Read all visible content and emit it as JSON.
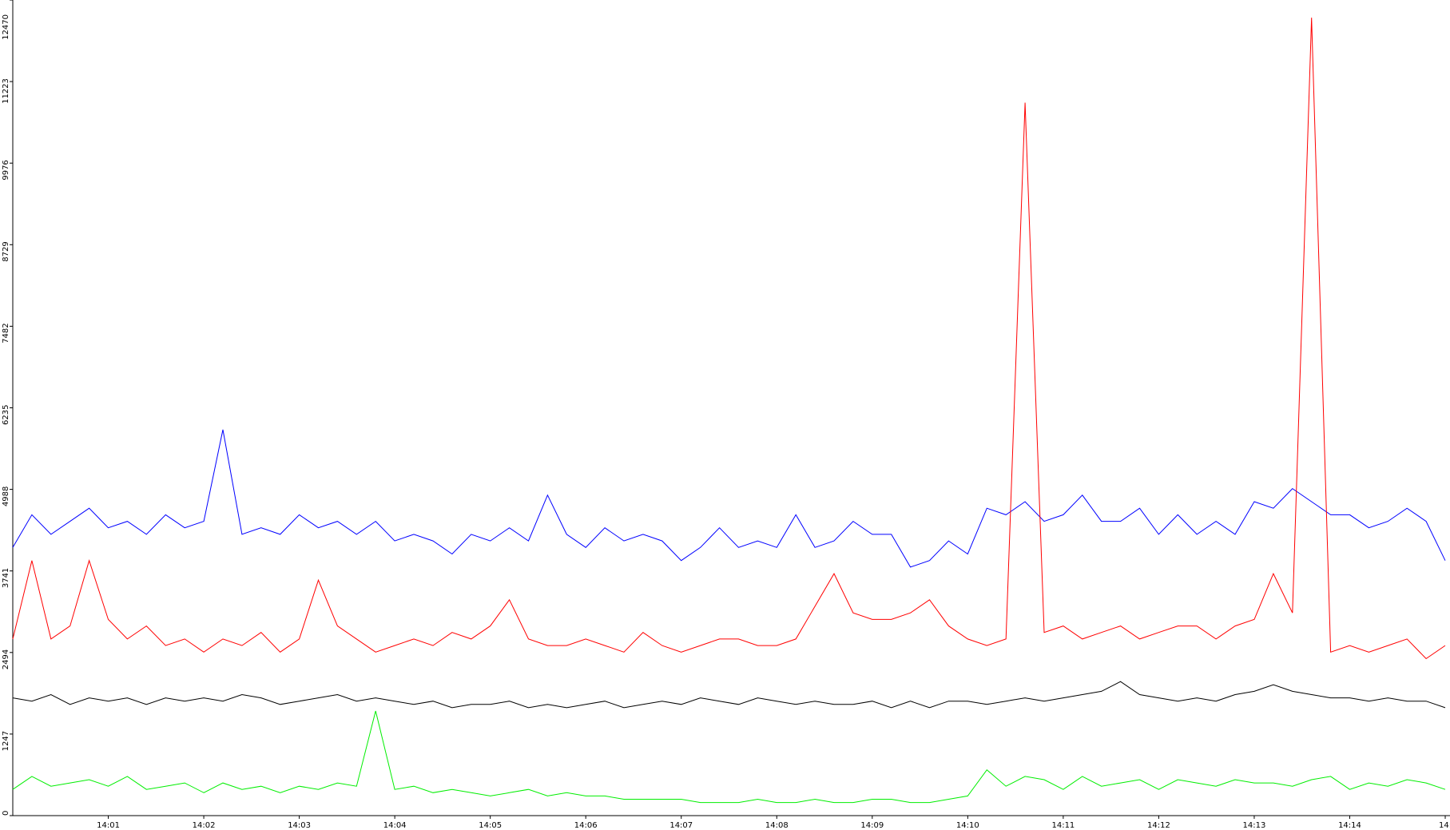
{
  "chart_data": {
    "type": "line",
    "x": [
      0,
      0.2,
      0.4,
      0.6,
      0.8,
      1,
      1.2,
      1.4,
      1.6,
      1.8,
      2,
      2.2,
      2.4,
      2.6,
      2.8,
      3,
      3.2,
      3.4,
      3.6,
      3.8,
      4,
      4.2,
      4.4,
      4.6,
      4.8,
      5,
      5.2,
      5.4,
      5.6,
      5.8,
      6,
      6.2,
      6.4,
      6.6,
      6.8,
      7,
      7.2,
      7.4,
      7.6,
      7.8,
      8,
      8.2,
      8.4,
      8.6,
      8.8,
      9,
      9.2,
      9.4,
      9.6,
      9.8,
      10,
      10.2,
      10.4,
      10.6,
      10.8,
      11,
      11.2,
      11.4,
      11.6,
      11.8,
      12,
      12.2,
      12.4,
      12.6,
      12.8,
      13,
      13.2,
      13.4,
      13.6,
      13.8,
      14,
      14.2,
      14.4,
      14.6,
      14.8,
      15
    ],
    "series": [
      {
        "color": "#0000ff",
        "values": [
          4100,
          4600,
          4300,
          4500,
          4700,
          4400,
          4500,
          4300,
          4600,
          4400,
          4500,
          5900,
          4300,
          4400,
          4300,
          4600,
          4400,
          4500,
          4300,
          4500,
          4200,
          4300,
          4200,
          4000,
          4300,
          4200,
          4400,
          4200,
          4900,
          4300,
          4100,
          4400,
          4200,
          4300,
          4200,
          3900,
          4100,
          4400,
          4100,
          4200,
          4100,
          4600,
          4100,
          4200,
          4500,
          4300,
          4300,
          3800,
          3900,
          4200,
          4000,
          4700,
          4600,
          4800,
          4500,
          4600,
          4900,
          4500,
          4500,
          4700,
          4300,
          4600,
          4300,
          4500,
          4300,
          4800,
          4700,
          5000,
          4800,
          4600,
          4600,
          4400,
          4500,
          4700,
          4500,
          3900
        ]
      },
      {
        "color": "#ff0000",
        "values": [
          2700,
          3900,
          2700,
          2900,
          3900,
          3000,
          2700,
          2900,
          2600,
          2700,
          2500,
          2700,
          2600,
          2800,
          2500,
          2700,
          3600,
          2900,
          2700,
          2500,
          2600,
          2700,
          2600,
          2800,
          2700,
          2900,
          3300,
          2700,
          2600,
          2600,
          2700,
          2600,
          2500,
          2800,
          2600,
          2500,
          2600,
          2700,
          2700,
          2600,
          2600,
          2700,
          3200,
          3700,
          3100,
          3000,
          3000,
          3100,
          3300,
          2900,
          2700,
          2600,
          2700,
          10900,
          2800,
          2900,
          2700,
          2800,
          2900,
          2700,
          2800,
          2900,
          2900,
          2700,
          2900,
          3000,
          3700,
          3100,
          12200,
          2500,
          2600,
          2500,
          2600,
          2700,
          2400,
          2600
        ]
      },
      {
        "color": "#000000",
        "values": [
          1800,
          1750,
          1850,
          1700,
          1800,
          1750,
          1800,
          1700,
          1800,
          1750,
          1800,
          1750,
          1850,
          1800,
          1700,
          1750,
          1800,
          1850,
          1750,
          1800,
          1750,
          1700,
          1750,
          1650,
          1700,
          1700,
          1750,
          1650,
          1700,
          1650,
          1700,
          1750,
          1650,
          1700,
          1750,
          1700,
          1800,
          1750,
          1700,
          1800,
          1750,
          1700,
          1750,
          1700,
          1700,
          1750,
          1650,
          1750,
          1650,
          1750,
          1750,
          1700,
          1750,
          1800,
          1750,
          1800,
          1850,
          1900,
          2050,
          1850,
          1800,
          1750,
          1800,
          1750,
          1850,
          1900,
          2000,
          1900,
          1850,
          1800,
          1800,
          1750,
          1800,
          1750,
          1750,
          1650
        ]
      },
      {
        "color": "#00ee00",
        "values": [
          400,
          600,
          450,
          500,
          550,
          450,
          600,
          400,
          450,
          500,
          350,
          500,
          400,
          450,
          350,
          450,
          400,
          500,
          450,
          1600,
          400,
          450,
          350,
          400,
          350,
          300,
          350,
          400,
          300,
          350,
          300,
          300,
          250,
          250,
          250,
          250,
          200,
          200,
          200,
          250,
          200,
          200,
          250,
          200,
          200,
          250,
          250,
          200,
          200,
          250,
          300,
          700,
          450,
          600,
          550,
          400,
          600,
          450,
          500,
          550,
          400,
          550,
          500,
          450,
          550,
          500,
          500,
          450,
          550,
          600,
          400,
          500,
          450,
          550,
          500,
          400
        ]
      }
    ],
    "xlim": [
      0,
      15.05
    ],
    "xticks": [
      {
        "value": 1,
        "label": "14:01"
      },
      {
        "value": 2,
        "label": "14:02"
      },
      {
        "value": 3,
        "label": "14:03"
      },
      {
        "value": 4,
        "label": "14:04"
      },
      {
        "value": 5,
        "label": "14:05"
      },
      {
        "value": 6,
        "label": "14:06"
      },
      {
        "value": 7,
        "label": "14:07"
      },
      {
        "value": 8,
        "label": "14:08"
      },
      {
        "value": 9,
        "label": "14:09"
      },
      {
        "value": 10,
        "label": "14:10"
      },
      {
        "value": 11,
        "label": "14:11"
      },
      {
        "value": 12,
        "label": "14:12"
      },
      {
        "value": 13,
        "label": "14:13"
      },
      {
        "value": 14,
        "label": "14:14"
      },
      {
        "value": 15,
        "label": "14:"
      }
    ],
    "ylim": [
      0,
      12470
    ],
    "yticks": [
      0,
      1247,
      2494,
      3741,
      4988,
      6235,
      7482,
      8729,
      9976,
      11223,
      12470
    ]
  }
}
